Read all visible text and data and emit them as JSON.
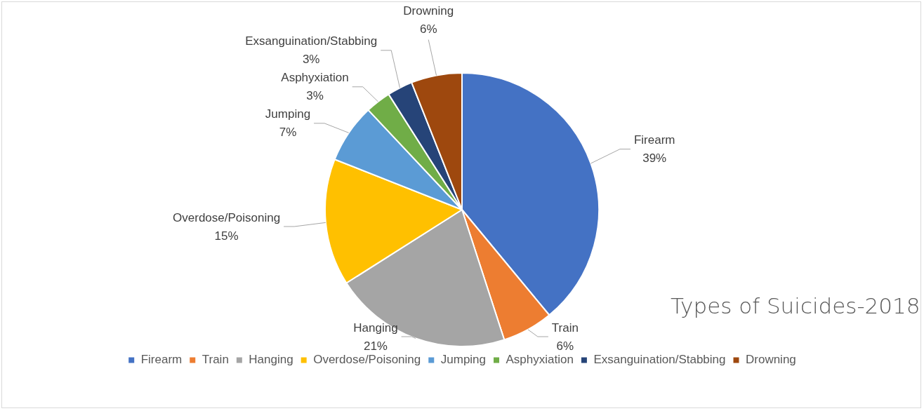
{
  "chart_data": {
    "type": "pie",
    "title": "Types of Suicides-2018",
    "categories": [
      "Firearm",
      "Train",
      "Hanging",
      "Overdose/Poisoning",
      "Jumping",
      "Asphyxiation",
      "Exsanguination/Stabbing",
      "Drowning"
    ],
    "values": [
      39,
      6,
      21,
      15,
      7,
      3,
      3,
      6
    ],
    "value_labels": [
      "39%",
      "6%",
      "21%",
      "15%",
      "7%",
      "3%",
      "3%",
      "6%"
    ],
    "colors": [
      "#4472c4",
      "#ed7d31",
      "#a5a5a5",
      "#ffc000",
      "#5b9bd5",
      "#70ad47",
      "#264478",
      "#9e480e"
    ],
    "legend": "bottom"
  }
}
